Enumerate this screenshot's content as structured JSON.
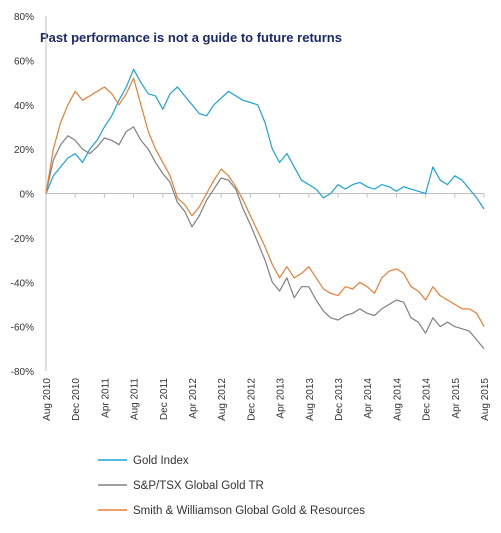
{
  "chart_data": {
    "type": "line",
    "title": "Past performance is not a guide to future returns",
    "xlabel": "",
    "ylabel": "",
    "ylim": [
      -80,
      80
    ],
    "y_ticks": [
      80,
      60,
      40,
      20,
      0,
      -20,
      -40,
      -60,
      -80
    ],
    "y_tick_labels": [
      "80%",
      "60%",
      "40%",
      "20%",
      "0%",
      "-20%",
      "-40%",
      "-60%",
      "-80%"
    ],
    "x_tick_labels": [
      "Aug 2010",
      "Dec 2010",
      "Apr 2011",
      "Aug 2011",
      "Dec 2011",
      "Apr 2012",
      "Aug 2012",
      "Dec 2012",
      "Apr 2013",
      "Aug 2013",
      "Dec 2013",
      "Apr 2014",
      "Aug 2014",
      "Dec 2014",
      "Apr 2015",
      "Aug 2015"
    ],
    "x": [
      "Aug 2010",
      "Sep 2010",
      "Oct 2010",
      "Nov 2010",
      "Dec 2010",
      "Jan 2011",
      "Feb 2011",
      "Mar 2011",
      "Apr 2011",
      "May 2011",
      "Jun 2011",
      "Jul 2011",
      "Aug 2011",
      "Sep 2011",
      "Oct 2011",
      "Nov 2011",
      "Dec 2011",
      "Jan 2012",
      "Feb 2012",
      "Mar 2012",
      "Apr 2012",
      "May 2012",
      "Jun 2012",
      "Jul 2012",
      "Aug 2012",
      "Sep 2012",
      "Oct 2012",
      "Nov 2012",
      "Dec 2012",
      "Jan 2013",
      "Feb 2013",
      "Mar 2013",
      "Apr 2013",
      "May 2013",
      "Jun 2013",
      "Jul 2013",
      "Aug 2013",
      "Sep 2013",
      "Oct 2013",
      "Nov 2013",
      "Dec 2013",
      "Jan 2014",
      "Feb 2014",
      "Mar 2014",
      "Apr 2014",
      "May 2014",
      "Jun 2014",
      "Jul 2014",
      "Aug 2014",
      "Sep 2014",
      "Oct 2014",
      "Nov 2014",
      "Dec 2014",
      "Jan 2015",
      "Feb 2015",
      "Mar 2015",
      "Apr 2015",
      "May 2015",
      "Jun 2015",
      "Jul 2015",
      "Aug 2015"
    ],
    "grid": false,
    "legend_position": "bottom",
    "series": [
      {
        "name": "Gold Index",
        "color": "#1aa3d9",
        "values": [
          0,
          8,
          12,
          16,
          18,
          14,
          20,
          24,
          30,
          35,
          42,
          48,
          56,
          50,
          45,
          44,
          38,
          45,
          48,
          44,
          40,
          36,
          35,
          40,
          43,
          46,
          44,
          42,
          41,
          40,
          32,
          20,
          14,
          18,
          12,
          6,
          4,
          2,
          -2,
          0,
          4,
          2,
          4,
          5,
          3,
          2,
          4,
          3,
          1,
          3,
          2,
          1,
          0,
          12,
          6,
          4,
          8,
          6,
          2,
          -2,
          -7
        ]
      },
      {
        "name": "S&P/TSX Global Gold TR",
        "color": "#808080",
        "values": [
          0,
          15,
          22,
          26,
          24,
          20,
          18,
          21,
          25,
          24,
          22,
          28,
          30,
          24,
          20,
          14,
          9,
          5,
          -4,
          -8,
          -15,
          -10,
          -3,
          2,
          7,
          6,
          2,
          -7,
          -14,
          -22,
          -30,
          -40,
          -44,
          -38,
          -47,
          -42,
          -42,
          -48,
          -53,
          -56,
          -57,
          -55,
          -54,
          -52,
          -54,
          -55,
          -52,
          -50,
          -48,
          -49,
          -56,
          -58,
          -63,
          -56,
          -60,
          -58,
          -60,
          -61,
          -62,
          -66,
          -70
        ]
      },
      {
        "name": "Smith & Williamson Global Gold & Resources",
        "color": "#ee7d31",
        "values": [
          0,
          20,
          32,
          40,
          46,
          42,
          44,
          46,
          48,
          45,
          40,
          45,
          52,
          40,
          28,
          20,
          14,
          8,
          -2,
          -5,
          -10,
          -6,
          0,
          6,
          11,
          8,
          3,
          -3,
          -10,
          -17,
          -24,
          -32,
          -38,
          -33,
          -38,
          -36,
          -33,
          -38,
          -43,
          -45,
          -46,
          -42,
          -43,
          -40,
          -42,
          -45,
          -38,
          -35,
          -34,
          -36,
          -42,
          -44,
          -48,
          -42,
          -46,
          -48,
          -50,
          -52,
          -52,
          -54,
          -60
        ]
      }
    ]
  }
}
